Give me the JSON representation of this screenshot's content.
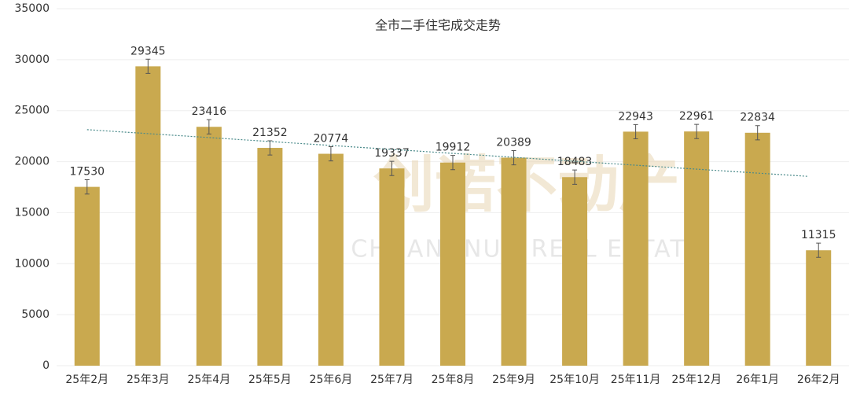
{
  "chart_data": {
    "type": "bar",
    "title": "全市二手住宅成交走势",
    "categories": [
      "25年2月",
      "25年3月",
      "25年4月",
      "25年5月",
      "25年6月",
      "25年7月",
      "25年8月",
      "25年9月",
      "25年10月",
      "25年11月",
      "25年12月",
      "26年1月",
      "26年2月"
    ],
    "values": [
      17530,
      29345,
      23416,
      21352,
      20774,
      19337,
      19912,
      20389,
      18483,
      22943,
      22961,
      22834,
      11315
    ],
    "error": 700,
    "color": "#c9a94f",
    "ylim": [
      0,
      35000
    ],
    "yticks": [
      0,
      5000,
      10000,
      15000,
      20000,
      25000,
      30000,
      35000
    ],
    "grid": true,
    "trendline": true,
    "trendline_color": "#4a8a8a",
    "watermark": [
      "创诺不动产",
      "CHUANGNUO REAL ESTATE"
    ]
  }
}
